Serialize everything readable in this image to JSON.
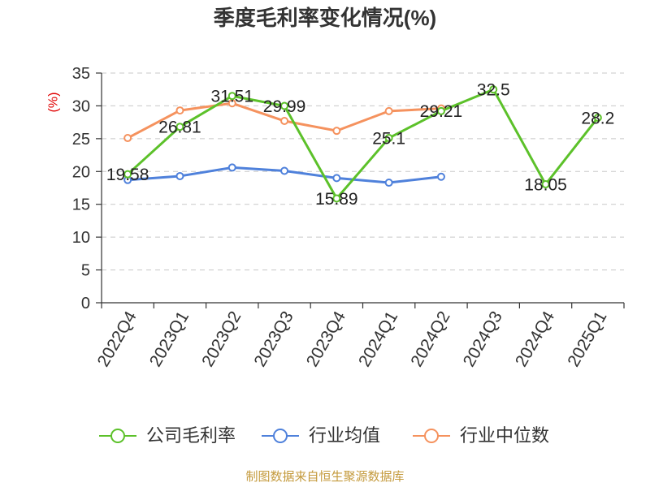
{
  "chart_data": {
    "type": "line",
    "title": "季度毛利率变化情况(%)",
    "xlabel": "",
    "ylabel": "(%)",
    "ylabel_color": "#e00000",
    "ylim": [
      0,
      35
    ],
    "yticks": [
      0,
      5,
      10,
      15,
      20,
      25,
      30,
      35
    ],
    "grid": true,
    "legend_position": "bottom",
    "categories": [
      "2022Q4",
      "2023Q1",
      "2023Q2",
      "2023Q3",
      "2023Q4",
      "2024Q1",
      "2024Q2",
      "2024Q3",
      "2024Q4",
      "2025Q1"
    ],
    "series": [
      {
        "name": "公司毛利率",
        "color": "#5cc12a",
        "show_data_labels": true,
        "values": [
          19.58,
          26.81,
          31.51,
          29.99,
          15.89,
          25.1,
          29.21,
          32.5,
          18.05,
          28.2
        ]
      },
      {
        "name": "行业均值",
        "color": "#4f81db",
        "show_data_labels": false,
        "values": [
          18.7,
          19.3,
          20.6,
          20.1,
          19.0,
          18.3,
          19.2,
          null,
          null,
          null
        ]
      },
      {
        "name": "行业中位数",
        "color": "#f5925e",
        "show_data_labels": false,
        "values": [
          25.1,
          29.3,
          30.4,
          27.7,
          26.2,
          29.2,
          29.6,
          null,
          null,
          null
        ]
      }
    ]
  },
  "footer": {
    "text": "制图数据来自恒生聚源数据库",
    "color": "#c49a3c"
  }
}
